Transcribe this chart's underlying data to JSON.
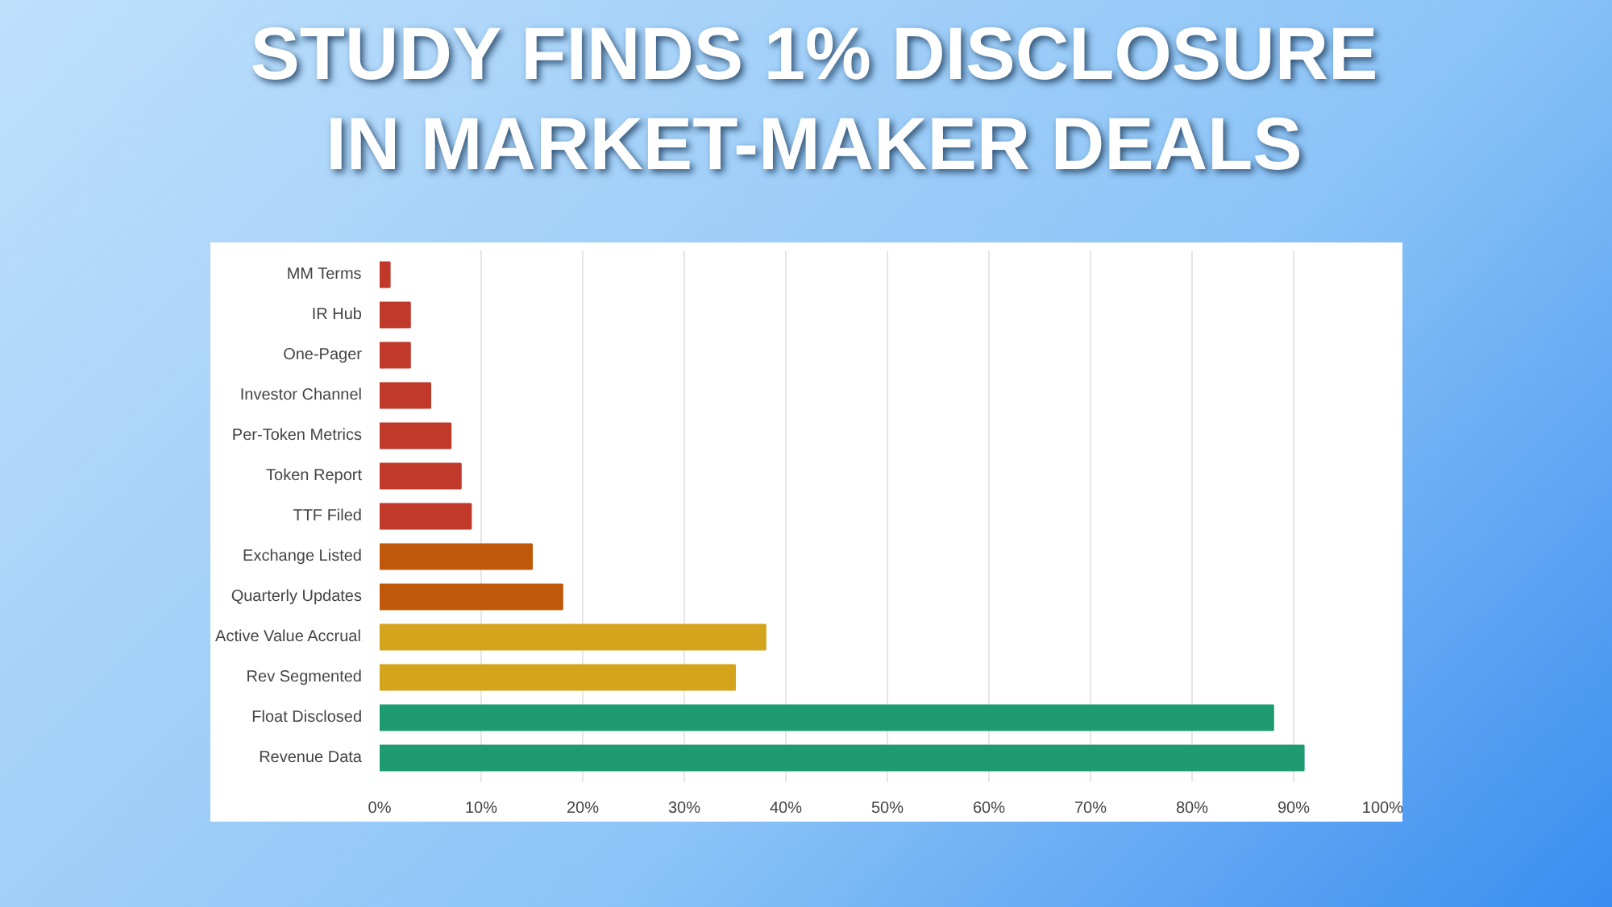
{
  "chart_data": {
    "type": "bar",
    "orientation": "horizontal",
    "title": "STUDY FINDS 1% DISCLOSURE\nIN MARKET-MAKER DEALS",
    "categories": [
      "MM Terms",
      "IR Hub",
      "One-Pager",
      "Investor Channel",
      "Per-Token Metrics",
      "Token Report",
      "TTF Filed",
      "Exchange Listed",
      "Quarterly Updates",
      "Active Value Accrual",
      "Rev Segmented",
      "Float Disclosed",
      "Revenue Data"
    ],
    "values": [
      1,
      3,
      3,
      5,
      7,
      8,
      9,
      15,
      18,
      38,
      35,
      88,
      91
    ],
    "colors": [
      "#c0392b",
      "#c0392b",
      "#c0392b",
      "#c0392b",
      "#c0392b",
      "#c0392b",
      "#c0392b",
      "#c0580a",
      "#c0580a",
      "#d4a41c",
      "#d4a41c",
      "#1f9b72",
      "#1f9b72"
    ],
    "xlim": [
      0,
      100
    ],
    "xticks": [
      {
        "value": 0,
        "label": "0%"
      },
      {
        "value": 10,
        "label": "10%"
      },
      {
        "value": 20,
        "label": "20%"
      },
      {
        "value": 30,
        "label": "30%"
      },
      {
        "value": 40,
        "label": "40%"
      },
      {
        "value": 50,
        "label": "50%"
      },
      {
        "value": 60,
        "label": "60%"
      },
      {
        "value": 70,
        "label": "70%"
      },
      {
        "value": 80,
        "label": "80%"
      },
      {
        "value": 90,
        "label": "90%"
      },
      {
        "value": 100,
        "label": "100%"
      }
    ],
    "grid": "x"
  }
}
